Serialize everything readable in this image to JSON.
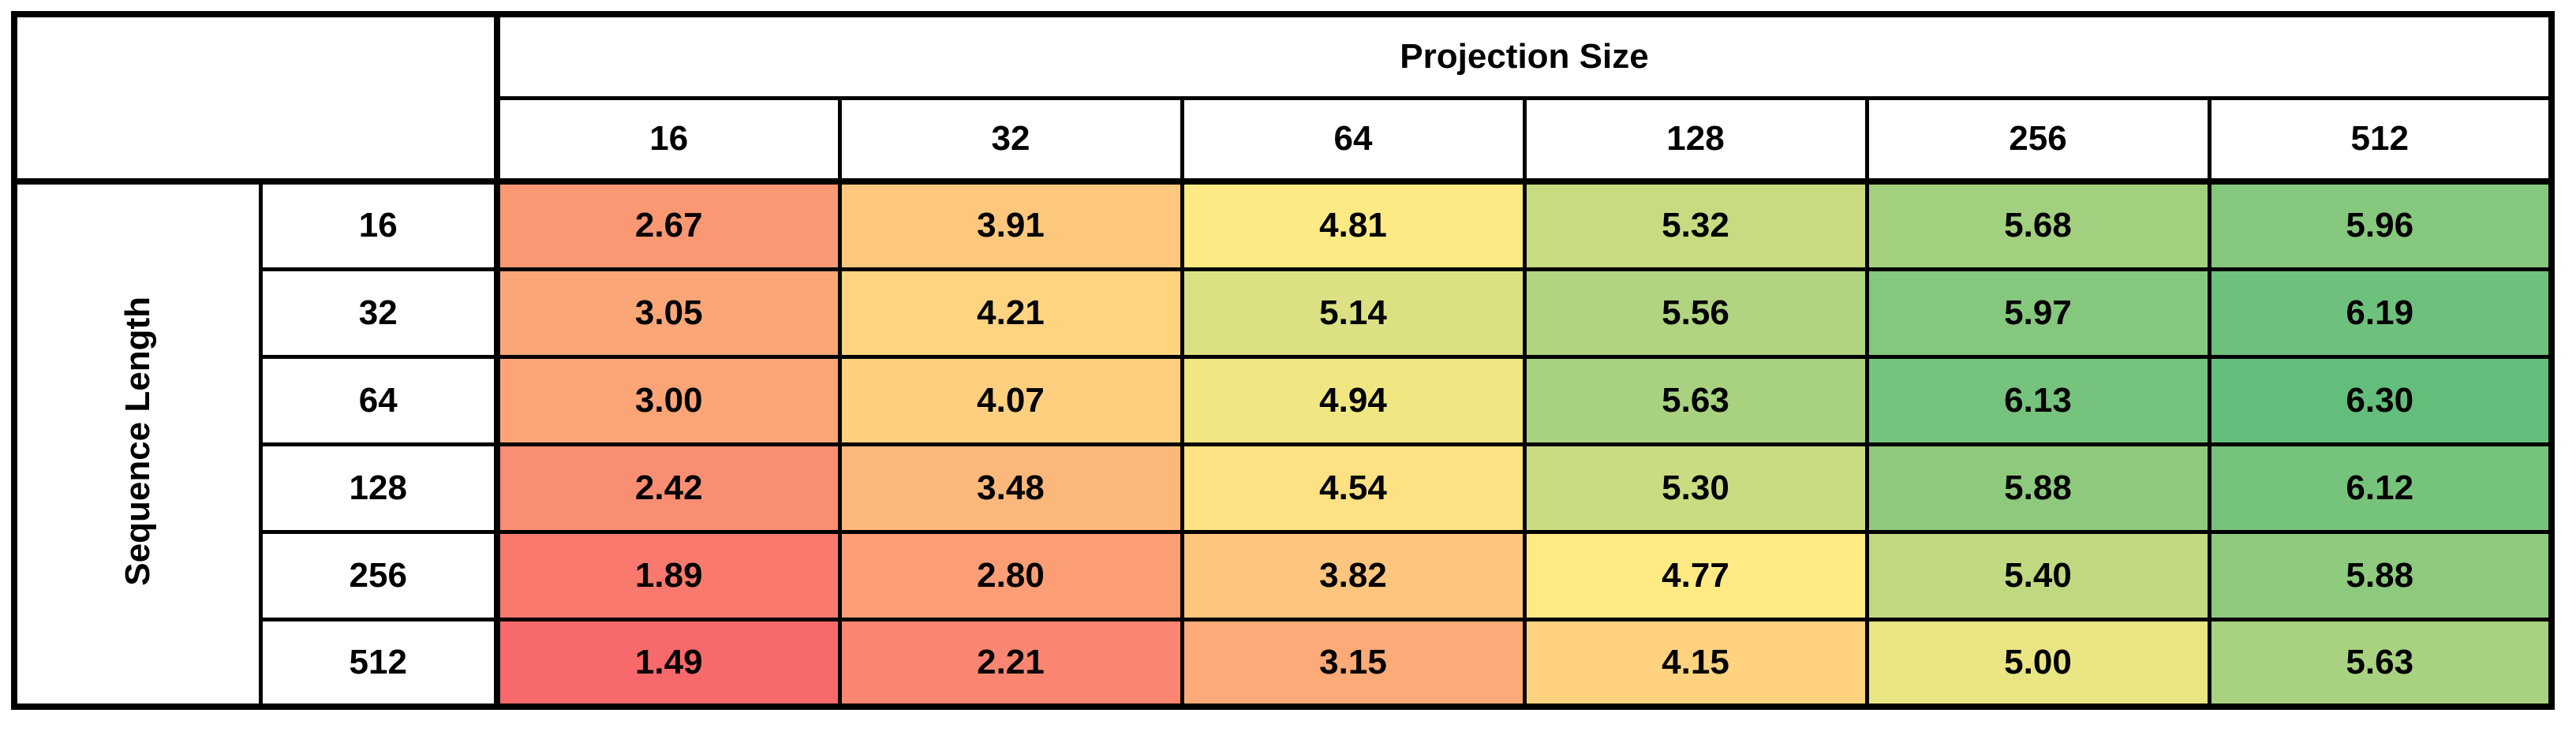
{
  "chart_data": {
    "type": "heatmap",
    "col_axis_label": "Projection Size",
    "row_axis_label": "Sequence Length",
    "columns": [
      "16",
      "32",
      "64",
      "128",
      "256",
      "512"
    ],
    "rows": [
      "16",
      "32",
      "64",
      "128",
      "256",
      "512"
    ],
    "values": [
      [
        2.67,
        3.91,
        4.81,
        5.32,
        5.68,
        5.96
      ],
      [
        3.05,
        4.21,
        5.14,
        5.56,
        5.97,
        6.19
      ],
      [
        3.0,
        4.07,
        4.94,
        5.63,
        6.13,
        6.3
      ],
      [
        2.42,
        3.48,
        4.54,
        5.3,
        5.88,
        6.12
      ],
      [
        1.89,
        2.8,
        3.82,
        4.77,
        5.4,
        5.88
      ],
      [
        1.49,
        2.21,
        3.15,
        4.15,
        5.0,
        5.63
      ]
    ],
    "value_decimals": 2,
    "colormap": {
      "type": "3-color-scale-red-yellow-green",
      "min": {
        "value": 1.49,
        "color": "#F8696B"
      },
      "mid": {
        "value": 4.79,
        "color": "#FFEB84"
      },
      "max": {
        "value": 6.3,
        "color": "#63BE7B"
      }
    },
    "cell_colors": [
      [
        "#FA9874",
        "#FDC87D",
        "#FDEA84",
        "#C8DB81",
        "#A3D07F",
        "#86C87D"
      ],
      [
        "#FBA677",
        "#FED480",
        "#DBE182",
        "#B0D47F",
        "#85C87D",
        "#6EC17C"
      ],
      [
        "#FBA476",
        "#FDCF7F",
        "#F0E783",
        "#A8D27F",
        "#75C37C",
        "#63BE7B"
      ],
      [
        "#FA8E72",
        "#FCB77A",
        "#FEE182",
        "#CADC81",
        "#8ECA7D",
        "#76C37C"
      ],
      [
        "#F9796E",
        "#FB9D75",
        "#FDC57D",
        "#FFEA84",
        "#C0D980",
        "#8ECA7D"
      ],
      [
        "#F8696B",
        "#FA8570",
        "#FCAA78",
        "#FED27F",
        "#E9E583",
        "#A8D27F"
      ]
    ],
    "grid": true,
    "legend": false
  },
  "colors": {
    "border": "#000000",
    "background": "#FFFFFF",
    "text": "#000000"
  }
}
